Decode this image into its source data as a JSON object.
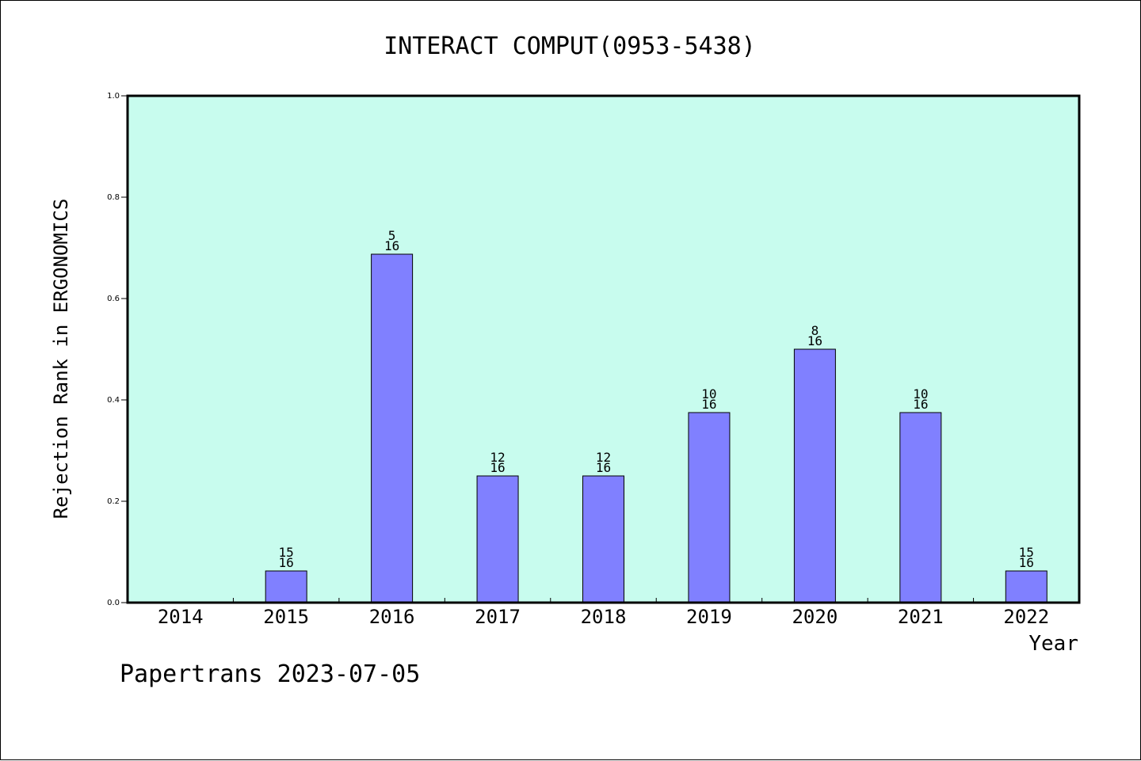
{
  "footer": {
    "text": "Papertrans 2023-07-05"
  },
  "colors": {
    "plot_background": "#c8fcee",
    "bar_fill": "#8080ff",
    "bar_stroke": "#000000",
    "axis": "#000000"
  },
  "chart_data": {
    "type": "bar",
    "title": "INTERACT COMPUT(0953-5438)",
    "xlabel": "Year",
    "ylabel": "Rejection Rank in ERGONOMICS",
    "ylim": [
      0,
      1.0
    ],
    "yticks": [
      "0.0",
      "0.2",
      "0.4",
      "0.6",
      "0.8",
      "1.0"
    ],
    "grid": false,
    "legend": "none",
    "categories": [
      "2014",
      "2015",
      "2016",
      "2017",
      "2018",
      "2019",
      "2020",
      "2021",
      "2022"
    ],
    "values": [
      null,
      0.0625,
      0.6875,
      0.25,
      0.25,
      0.375,
      0.5,
      0.375,
      0.0625
    ],
    "labels": [
      null,
      {
        "rank": "15",
        "total": "16"
      },
      {
        "rank": "5",
        "total": "16"
      },
      {
        "rank": "12",
        "total": "16"
      },
      {
        "rank": "12",
        "total": "16"
      },
      {
        "rank": "10",
        "total": "16"
      },
      {
        "rank": "8",
        "total": "16"
      },
      {
        "rank": "10",
        "total": "16"
      },
      {
        "rank": "15",
        "total": "16"
      }
    ]
  }
}
